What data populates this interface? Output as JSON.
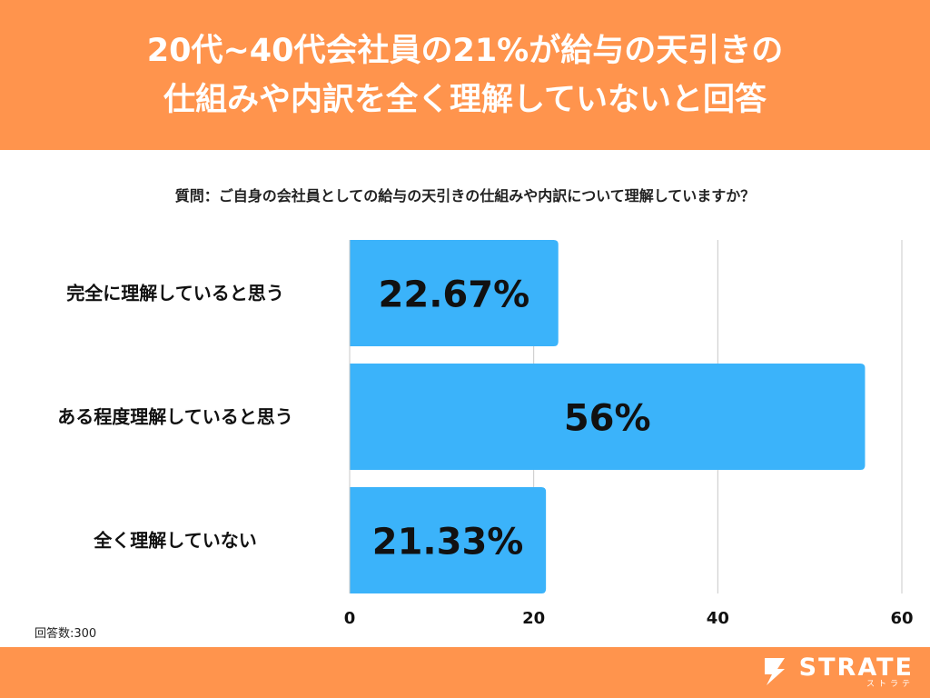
{
  "header": {
    "title_line1": "20代~40代会社員の21%が給与の天引きの",
    "title_line2": "仕組みや内訳を全く理解していないと回答"
  },
  "question": "質問：ご自身の会社員としての給与の天引きの仕組みや内訳について理解していますか？",
  "sample_size": "回答数:300",
  "brand": {
    "name": "STRATE",
    "kana": "ストラテ"
  },
  "colors": {
    "accent": "#FF944D",
    "bar": "#3BB3FA",
    "grid": "#C8C8C8",
    "text": "#111111"
  },
  "chart_data": {
    "type": "bar",
    "orientation": "horizontal",
    "categories": [
      "完全に理解していると思う",
      "ある程度理解していると思う",
      "全く理解していない"
    ],
    "values": [
      22.67,
      56,
      21.33
    ],
    "value_labels": [
      "22.67%",
      "56%",
      "21.33%"
    ],
    "xlim": [
      0,
      60
    ],
    "xticks": [
      0,
      20,
      40,
      60
    ],
    "title": "",
    "xlabel": "",
    "ylabel": "",
    "grid": true
  }
}
